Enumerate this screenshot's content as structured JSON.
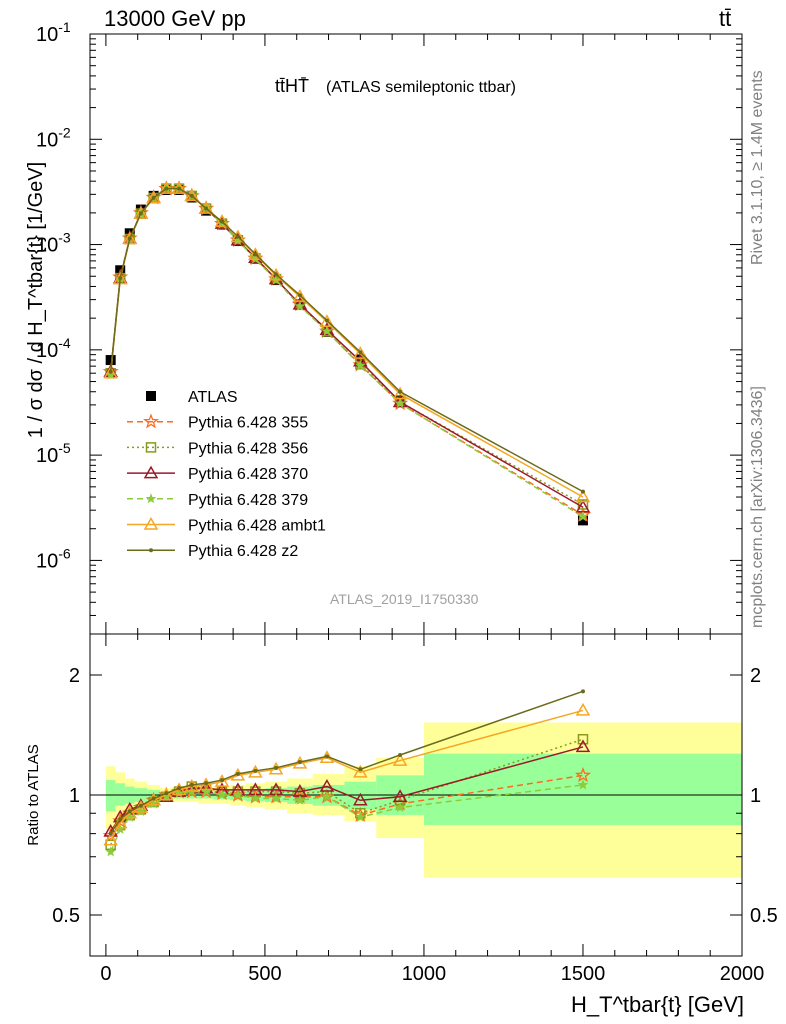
{
  "header": {
    "energy_label": "13000 GeV pp",
    "process_label": "tt̄",
    "plot_title_main": "tt̄HT̄",
    "plot_title_sub": "(ATLAS semileptonic ttbar)",
    "analysis_id": "ATLAS_2019_I1750330"
  },
  "side_labels": {
    "rivet": "Rivet 3.1.10, ≥ 1.4M events",
    "mcplots": "mcplots.cern.ch [arXiv:1306.3436]"
  },
  "chart_data": [
    {
      "type": "scatter",
      "panel": "main",
      "ylabel": "1 / σ dσ / d H_T^tbar{t} [1/GeV]",
      "yscale": "log",
      "ylim": [
        2e-07,
        0.1
      ],
      "xlim": [
        -50,
        2000
      ],
      "y_tick_labels": [
        "10^-6",
        "10^-5",
        "10^-4",
        "10^-3",
        "10^-2",
        "10^-1"
      ],
      "legend_position": "left-middle",
      "x": [
        15,
        45,
        75,
        110,
        150,
        190,
        230,
        270,
        315,
        365,
        415,
        470,
        535,
        610,
        695,
        800,
        925,
        1500
      ],
      "series": [
        {
          "name": "ATLAS",
          "color": "#000000",
          "marker": "filled-square",
          "line": "none",
          "values": [
            8e-05,
            0.00057,
            0.00128,
            0.00215,
            0.0029,
            0.0033,
            0.0033,
            0.0028,
            0.0021,
            0.00155,
            0.00108,
            0.00073,
            0.00046,
            0.00027,
            0.000148,
            8.1e-05,
            3.3e-05,
            2.4e-06
          ]
        },
        {
          "name": "Pythia 6.428 355",
          "color": "#ff6a1f",
          "marker": "open-star",
          "line": "dashed",
          "values": [
            6.2e-05,
            0.00049,
            0.00115,
            0.002,
            0.0028,
            0.0034,
            0.0034,
            0.0029,
            0.0022,
            0.00158,
            0.0011,
            0.00074,
            0.00047,
            0.00027,
            0.00015,
            7.2e-05,
            3.1e-05,
            2.7e-06
          ]
        },
        {
          "name": "Pythia 6.428 356",
          "color": "#8a9a1a",
          "marker": "open-square",
          "line": "dotted",
          "values": [
            6e-05,
            0.00048,
            0.00113,
            0.00197,
            0.00277,
            0.0034,
            0.0034,
            0.0029,
            0.0022,
            0.00158,
            0.0011,
            0.00074,
            0.00047,
            0.00027,
            0.00015,
            7.3e-05,
            3.2e-05,
            3.4e-06
          ]
        },
        {
          "name": "Pythia 6.428 370",
          "color": "#9a1a2a",
          "marker": "open-triangle",
          "line": "solid",
          "values": [
            6.2e-05,
            0.00048,
            0.00114,
            0.00198,
            0.00278,
            0.0034,
            0.0034,
            0.0029,
            0.0022,
            0.00158,
            0.0011,
            0.00075,
            0.00047,
            0.00027,
            0.000155,
            7.8e-05,
            3.2e-05,
            3.2e-06
          ]
        },
        {
          "name": "Pythia 6.428 379",
          "color": "#8ccc3a",
          "marker": "small-star",
          "line": "dashed",
          "values": [
            5.8e-05,
            0.00047,
            0.00112,
            0.00196,
            0.00277,
            0.0034,
            0.0034,
            0.0029,
            0.0022,
            0.00157,
            0.00109,
            0.00073,
            0.00046,
            0.00026,
            0.00015,
            7.1e-05,
            3.1e-05,
            2.6e-06
          ]
        },
        {
          "name": "Pythia 6.428 ambt1",
          "color": "#f5a623",
          "marker": "open-triangle",
          "line": "solid",
          "values": [
            6e-05,
            0.00047,
            0.00113,
            0.00197,
            0.00278,
            0.0034,
            0.0034,
            0.0029,
            0.0022,
            0.00165,
            0.00118,
            0.0008,
            0.00051,
            0.00032,
            0.000185,
            9.2e-05,
            3.8e-05,
            4e-06
          ]
        },
        {
          "name": "Pythia 6.428 z2",
          "color": "#6b6b1a",
          "marker": "dot",
          "line": "solid",
          "values": [
            6.2e-05,
            0.00048,
            0.00114,
            0.00198,
            0.00278,
            0.0034,
            0.0034,
            0.0029,
            0.0022,
            0.00165,
            0.00119,
            0.00081,
            0.00052,
            0.00033,
            0.00019,
            9.5e-05,
            4e-05,
            4.5e-06
          ]
        }
      ]
    },
    {
      "type": "line",
      "panel": "ratio",
      "ylabel": "Ratio to ATLAS",
      "xlabel": "H_T^tbar{t} [GeV]",
      "xlim": [
        -50,
        2000
      ],
      "ylim": [
        0.42,
        2.3
      ],
      "x_tick_labels": [
        "0",
        "500",
        "1000",
        "1500",
        "2000"
      ],
      "y_tick_labels": [
        "0.5",
        "1",
        "2"
      ],
      "bands": [
        {
          "x0": 0,
          "x1": 30,
          "stat_lo": 0.91,
          "stat_hi": 1.09,
          "tot_lo": 0.82,
          "tot_hi": 1.18
        },
        {
          "x0": 30,
          "x1": 60,
          "stat_lo": 0.94,
          "stat_hi": 1.07,
          "tot_lo": 0.87,
          "tot_hi": 1.14
        },
        {
          "x0": 60,
          "x1": 90,
          "stat_lo": 0.95,
          "stat_hi": 1.05,
          "tot_lo": 0.9,
          "tot_hi": 1.1
        },
        {
          "x0": 90,
          "x1": 130,
          "stat_lo": 0.96,
          "stat_hi": 1.04,
          "tot_lo": 0.92,
          "tot_hi": 1.08
        },
        {
          "x0": 130,
          "x1": 170,
          "stat_lo": 0.97,
          "stat_hi": 1.03,
          "tot_lo": 0.94,
          "tot_hi": 1.06
        },
        {
          "x0": 170,
          "x1": 210,
          "stat_lo": 0.98,
          "stat_hi": 1.02,
          "tot_lo": 0.96,
          "tot_hi": 1.04
        },
        {
          "x0": 210,
          "x1": 250,
          "stat_lo": 0.98,
          "stat_hi": 1.02,
          "tot_lo": 0.96,
          "tot_hi": 1.04
        },
        {
          "x0": 250,
          "x1": 290,
          "stat_lo": 0.98,
          "stat_hi": 1.02,
          "tot_lo": 0.96,
          "tot_hi": 1.04
        },
        {
          "x0": 290,
          "x1": 340,
          "stat_lo": 0.98,
          "stat_hi": 1.02,
          "tot_lo": 0.95,
          "tot_hi": 1.05
        },
        {
          "x0": 340,
          "x1": 390,
          "stat_lo": 0.975,
          "stat_hi": 1.025,
          "tot_lo": 0.95,
          "tot_hi": 1.05
        },
        {
          "x0": 390,
          "x1": 440,
          "stat_lo": 0.97,
          "stat_hi": 1.03,
          "tot_lo": 0.94,
          "tot_hi": 1.06
        },
        {
          "x0": 440,
          "x1": 500,
          "stat_lo": 0.965,
          "stat_hi": 1.035,
          "tot_lo": 0.93,
          "tot_hi": 1.07
        },
        {
          "x0": 500,
          "x1": 570,
          "stat_lo": 0.96,
          "stat_hi": 1.04,
          "tot_lo": 0.92,
          "tot_hi": 1.08
        },
        {
          "x0": 570,
          "x1": 650,
          "stat_lo": 0.95,
          "stat_hi": 1.05,
          "tot_lo": 0.9,
          "tot_hi": 1.1
        },
        {
          "x0": 650,
          "x1": 750,
          "stat_lo": 0.94,
          "stat_hi": 1.06,
          "tot_lo": 0.89,
          "tot_hi": 1.13
        },
        {
          "x0": 750,
          "x1": 850,
          "stat_lo": 0.92,
          "stat_hi": 1.08,
          "tot_lo": 0.86,
          "tot_hi": 1.18
        },
        {
          "x0": 850,
          "x1": 1000,
          "stat_lo": 0.89,
          "stat_hi": 1.12,
          "tot_lo": 0.78,
          "tot_hi": 1.24
        },
        {
          "x0": 1000,
          "x1": 2000,
          "stat_lo": 0.84,
          "stat_hi": 1.27,
          "tot_lo": 0.62,
          "tot_hi": 1.52
        }
      ],
      "x": [
        15,
        45,
        75,
        110,
        150,
        190,
        230,
        270,
        315,
        365,
        415,
        470,
        535,
        610,
        695,
        800,
        925,
        1500
      ],
      "series": [
        {
          "name": "Pythia 6.428 355",
          "color": "#ff6a1f",
          "marker": "open-star",
          "line": "dashed",
          "values": [
            0.79,
            0.86,
            0.9,
            0.93,
            0.97,
            1.0,
            1.02,
            1.02,
            1.02,
            1.01,
            1.0,
            0.99,
            0.99,
            0.99,
            0.99,
            0.89,
            0.95,
            1.12
          ]
        },
        {
          "name": "Pythia 6.428 356",
          "color": "#8a9a1a",
          "marker": "open-square",
          "line": "dotted",
          "values": [
            0.75,
            0.84,
            0.89,
            0.92,
            0.96,
            0.99,
            1.02,
            1.05,
            1.04,
            1.02,
            1.02,
            1.02,
            1.02,
            1.01,
            1.02,
            0.9,
            0.97,
            1.38
          ]
        },
        {
          "name": "Pythia 6.428 370",
          "color": "#9a1a2a",
          "marker": "open-triangle",
          "line": "solid",
          "values": [
            0.81,
            0.88,
            0.92,
            0.94,
            0.97,
            0.99,
            1.02,
            1.04,
            1.04,
            1.03,
            1.03,
            1.03,
            1.03,
            1.02,
            1.05,
            0.97,
            0.99,
            1.32
          ]
        },
        {
          "name": "Pythia 6.428 379",
          "color": "#8ccc3a",
          "marker": "small-star",
          "line": "dashed",
          "values": [
            0.72,
            0.82,
            0.88,
            0.91,
            0.95,
            0.99,
            1.01,
            1.02,
            1.02,
            1.0,
            1.0,
            0.98,
            0.98,
            0.97,
            0.99,
            0.88,
            0.93,
            1.06
          ]
        },
        {
          "name": "Pythia 6.428 ambt1",
          "color": "#f5a623",
          "marker": "open-triangle",
          "line": "solid",
          "values": [
            0.77,
            0.85,
            0.9,
            0.93,
            0.97,
            1.0,
            1.03,
            1.05,
            1.06,
            1.08,
            1.12,
            1.14,
            1.16,
            1.2,
            1.24,
            1.14,
            1.22,
            1.63
          ]
        },
        {
          "name": "Pythia 6.428 z2",
          "color": "#6b6b1a",
          "marker": "dot",
          "line": "solid",
          "values": [
            0.8,
            0.87,
            0.91,
            0.94,
            0.98,
            1.01,
            1.04,
            1.06,
            1.07,
            1.09,
            1.13,
            1.15,
            1.17,
            1.21,
            1.25,
            1.16,
            1.26,
            1.82
          ]
        }
      ]
    }
  ]
}
